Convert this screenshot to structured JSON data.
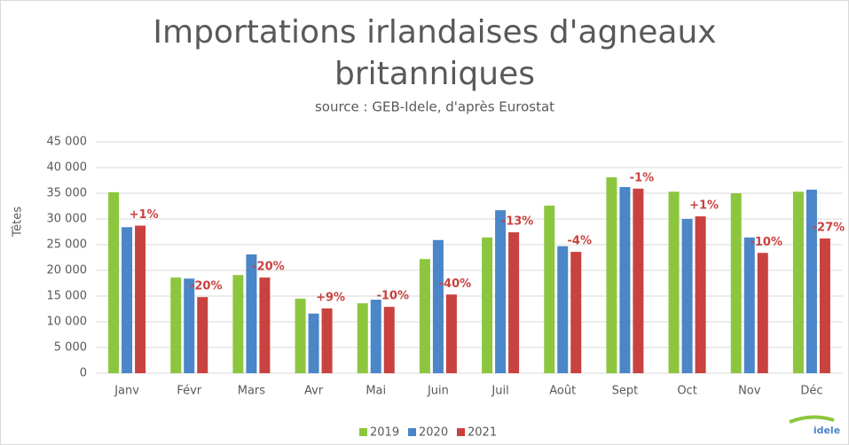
{
  "chart_data": {
    "type": "bar",
    "title": [
      "Importations irlandaises d'agneaux",
      "britanniques"
    ],
    "subtitle": "source : GEB-Idele, d'après Eurostat",
    "y_label": "Têtes",
    "categories": [
      "Janv",
      "Févr",
      "Mars",
      "Avr",
      "Mai",
      "Juin",
      "Juil",
      "Août",
      "Sept",
      "Oct",
      "Nov",
      "Déc"
    ],
    "series": [
      {
        "name": "2019",
        "color": "#8cc63f",
        "values": [
          35200,
          18600,
          19100,
          14500,
          13600,
          22200,
          26400,
          32600,
          38100,
          35300,
          35000,
          35300
        ]
      },
      {
        "name": "2020",
        "color": "#4a86c8",
        "values": [
          28400,
          18400,
          23100,
          11600,
          14300,
          25900,
          31700,
          24700,
          36200,
          30000,
          26400,
          35700
        ]
      },
      {
        "name": "2021",
        "color": "#c8423f",
        "values": [
          28700,
          14800,
          18600,
          12600,
          12900,
          15300,
          27400,
          23600,
          35900,
          30500,
          23400,
          26200
        ]
      }
    ],
    "annotations": [
      "+1%",
      "-20%",
      "-20%",
      "+9%",
      "-10%",
      "-40%",
      "-13%",
      "-4%",
      "-1%",
      "+1%",
      "-10%",
      "-27%"
    ],
    "annotation_color": "#c8423f",
    "ylim": [
      0,
      45000
    ],
    "yticks": [
      0,
      {
        "value": 5000,
        "label": "5 000"
      },
      {
        "value": 10000,
        "label": "10 000"
      },
      {
        "value": 15000,
        "label": "15 000"
      },
      {
        "value": 20000,
        "label": "20 000"
      },
      {
        "value": 25000,
        "label": "25 000"
      },
      {
        "value": 30000,
        "label": "30 000"
      },
      {
        "value": 35000,
        "label": "35 000"
      },
      {
        "value": 40000,
        "label": "40 000"
      },
      {
        "value": 45000,
        "label": "45 000"
      }
    ],
    "grid": true,
    "legend": "bottom",
    "logo": "idele"
  }
}
